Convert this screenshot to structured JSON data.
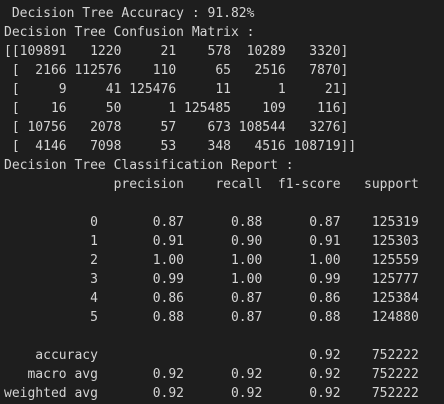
{
  "terminal": {
    "lines": [
      " Decision Tree Accuracy : 91.82%",
      "Decision Tree Confusion Matrix :",
      "[[109891   1220     21    578  10289   3320]",
      " [  2166 112576    110     65   2516   7870]",
      " [     9     41 125476     11      1     21]",
      " [    16     50      1 125485    109    116]",
      " [ 10756   2078     57    673 108544   3276]",
      " [  4146   7098     53    348   4516 108719]]",
      "Decision Tree Classification Report :",
      "              precision    recall  f1-score   support",
      "",
      "           0       0.87      0.88      0.87    125319",
      "           1       0.91      0.90      0.91    125303",
      "           2       1.00      1.00      1.00    125559",
      "           3       0.99      1.00      0.99    125777",
      "           4       0.86      0.87      0.86    125384",
      "           5       0.88      0.87      0.88    124880",
      "",
      "    accuracy                           0.92    752222",
      "   macro avg       0.92      0.92      0.92    752222",
      "weighted avg       0.92      0.92      0.92    752222"
    ]
  }
}
